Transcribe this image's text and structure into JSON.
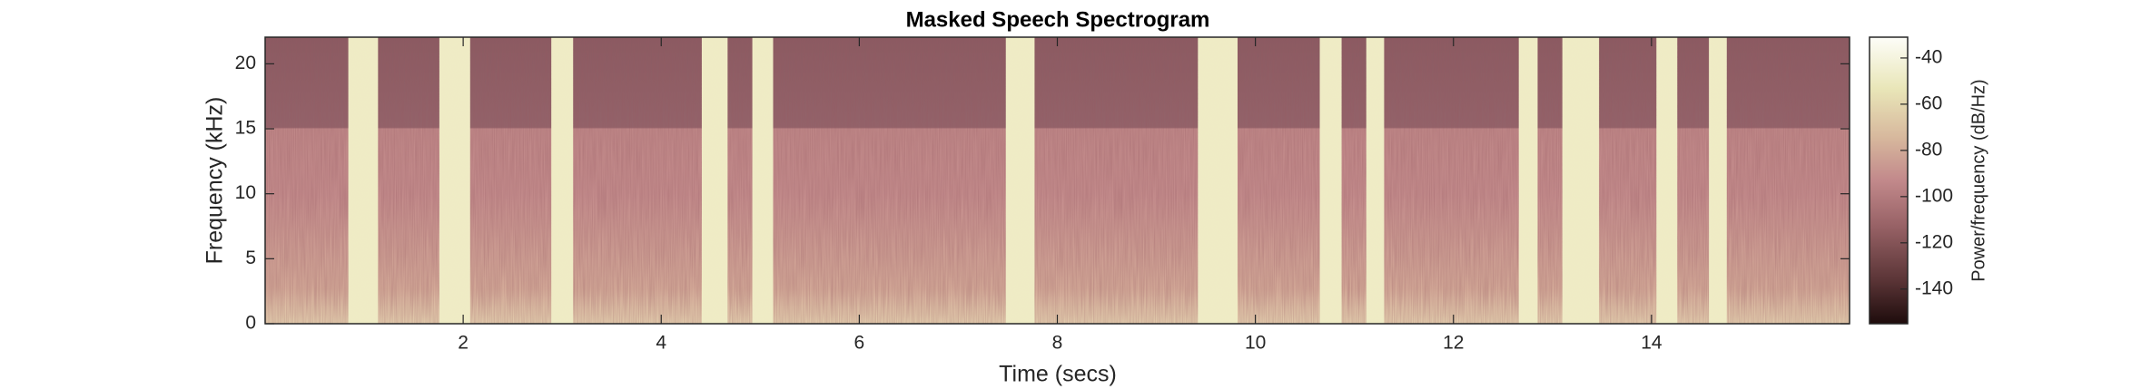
{
  "chart_data": {
    "type": "spectrogram",
    "title": "Masked Speech Spectrogram",
    "x_label": "Time (secs)",
    "y_label": "Frequency (kHz)",
    "colorbar_label": "Power/frequency (dB/Hz)",
    "xlim": [
      0,
      16
    ],
    "xticks": [
      2,
      4,
      6,
      8,
      10,
      12,
      14
    ],
    "ylim": [
      0,
      22.05
    ],
    "yticks": [
      0,
      5,
      10,
      15,
      20
    ],
    "clim": [
      -155,
      -31
    ],
    "cticks": [
      -140,
      -120,
      -100,
      -80,
      -60,
      -40
    ],
    "masked_segments": [
      [
        0.84,
        1.14
      ],
      [
        1.76,
        2.07
      ],
      [
        2.89,
        3.11
      ],
      [
        4.41,
        4.67
      ],
      [
        4.92,
        5.13
      ],
      [
        7.48,
        7.77
      ],
      [
        9.42,
        9.82
      ],
      [
        10.65,
        10.87
      ],
      [
        11.12,
        11.3
      ],
      [
        12.66,
        12.85
      ],
      [
        13.1,
        13.47
      ],
      [
        14.05,
        14.26
      ],
      [
        14.58,
        14.76
      ]
    ],
    "mask_color": "#efecc4"
  }
}
